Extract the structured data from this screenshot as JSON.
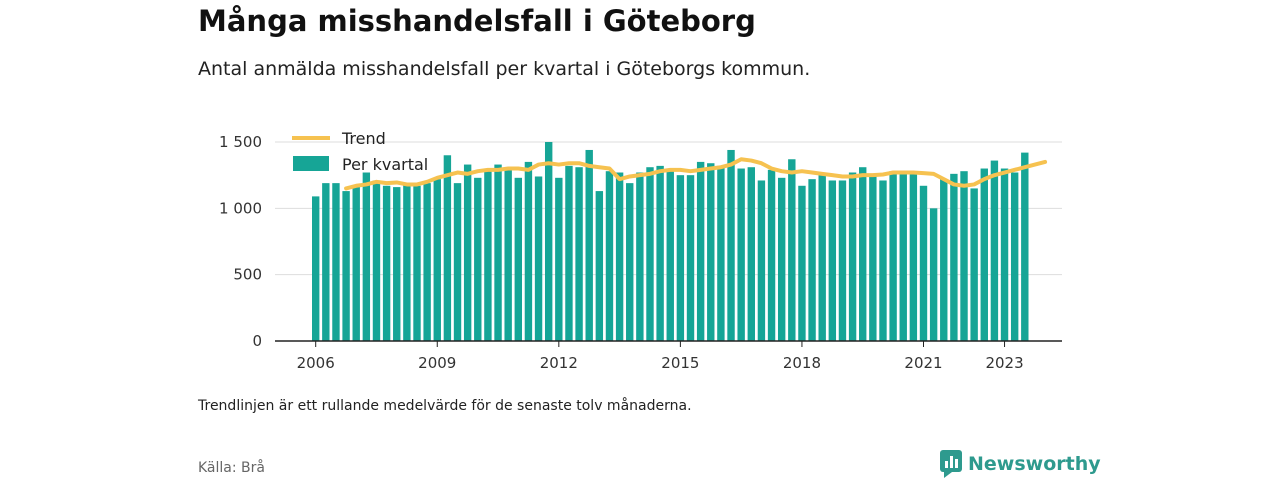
{
  "title": "Många misshandelsfall i Göteborg",
  "subtitle": "Antal anmälda misshandelsfall per kvartal i Göteborgs kommun.",
  "note": "Trendlinjen är ett rullande medelvärde för de senaste tolv månaderna.",
  "source": "Källa: Brå",
  "brand": "Newsworthy",
  "colors": {
    "bars": "#16a596",
    "trend": "#f6c250",
    "grid": "#dddddd",
    "brand": "#2e9a8e"
  },
  "chart_data": {
    "type": "bar",
    "series": [
      {
        "name": "Per kvartal",
        "start": "2006 Q1",
        "values": [
          1090,
          1190,
          1190,
          1130,
          1170,
          1270,
          1210,
          1170,
          1160,
          1190,
          1170,
          1190,
          1220,
          1400,
          1190,
          1330,
          1230,
          1300,
          1330,
          1290,
          1230,
          1350,
          1240,
          1500,
          1230,
          1320,
          1310,
          1440,
          1130,
          1280,
          1270,
          1190,
          1270,
          1310,
          1320,
          1300,
          1250,
          1250,
          1350,
          1340,
          1320,
          1440,
          1300,
          1310,
          1210,
          1290,
          1230,
          1370,
          1170,
          1220,
          1270,
          1210,
          1210,
          1270,
          1310,
          1250,
          1210,
          1280,
          1280,
          1270,
          1170,
          1000,
          1220,
          1260,
          1280,
          1150,
          1300,
          1360,
          1300,
          1270,
          1420
        ]
      },
      {
        "name": "Trend",
        "type": "line",
        "start": "2006 Q4",
        "values": [
          1150,
          1170,
          1180,
          1200,
          1190,
          1195,
          1180,
          1180,
          1200,
          1230,
          1250,
          1270,
          1260,
          1280,
          1290,
          1290,
          1300,
          1300,
          1290,
          1330,
          1340,
          1330,
          1340,
          1340,
          1320,
          1310,
          1300,
          1220,
          1240,
          1250,
          1260,
          1280,
          1290,
          1290,
          1280,
          1290,
          1300,
          1310,
          1330,
          1370,
          1360,
          1340,
          1300,
          1280,
          1270,
          1280,
          1270,
          1260,
          1250,
          1240,
          1240,
          1250,
          1250,
          1255,
          1270,
          1270,
          1270,
          1265,
          1260,
          1220,
          1180,
          1170,
          1180,
          1220,
          1250,
          1270,
          1290,
          1310,
          1330,
          1350
        ]
      }
    ],
    "x_ticks": [
      "2006",
      "2009",
      "2012",
      "2015",
      "2018",
      "2021",
      "2023"
    ],
    "y_ticks": [
      0,
      500,
      1000,
      1500
    ],
    "y_tick_labels": [
      "0",
      "500",
      "1 000",
      "1 500"
    ],
    "ylim": [
      0,
      1550
    ],
    "legend": {
      "placement": "top-left",
      "entries": [
        "Trend",
        "Per kvartal"
      ]
    },
    "grid": "horizontal"
  }
}
